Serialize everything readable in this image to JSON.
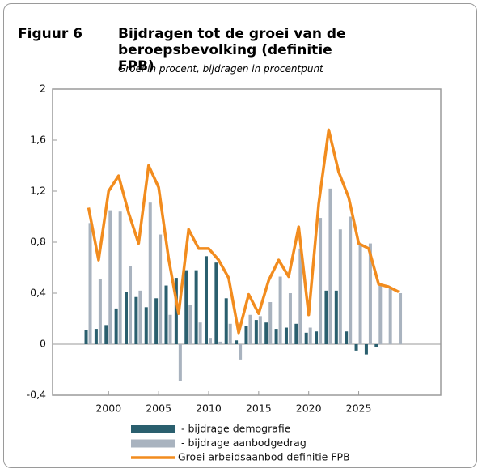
{
  "chart_data": {
    "type": "bar",
    "figure_label": "Figuur 6",
    "title": "Bijdragen tot de groei van de beroepsbevolking (definitie FPB)",
    "subtitle": "Groei in procent, bijdragen in procentpunt",
    "x": [
      1998,
      1999,
      2000,
      2001,
      2002,
      2003,
      2004,
      2005,
      2006,
      2007,
      2008,
      2009,
      2010,
      2011,
      2012,
      2013,
      2014,
      2015,
      2016,
      2017,
      2018,
      2019,
      2020,
      2021,
      2022,
      2023,
      2024,
      2025,
      2026,
      2027,
      2028,
      2029
    ],
    "xlim": [
      1994.4,
      2033.2
    ],
    "xticks": [
      2000,
      2005,
      2010,
      2015,
      2020,
      2025
    ],
    "ylim": [
      -0.4,
      2
    ],
    "yticks": [
      {
        "value": -0.4,
        "label": "-0,4"
      },
      0,
      {
        "value": 0.4,
        "label": "0,4"
      },
      {
        "value": 0.8,
        "label": "0,8"
      },
      {
        "value": 1.2,
        "label": "1,2"
      },
      {
        "value": 1.6,
        "label": "1,6"
      },
      2
    ],
    "series": [
      {
        "name": "- bijdrage demografie",
        "type": "bar",
        "color": "#2a5f6e",
        "values": [
          0.11,
          0.12,
          0.15,
          0.28,
          0.41,
          0.37,
          0.29,
          0.36,
          0.46,
          0.52,
          0.58,
          0.58,
          0.69,
          0.64,
          0.36,
          0.03,
          0.14,
          0.19,
          0.17,
          0.12,
          0.13,
          0.16,
          0.09,
          0.1,
          0.42,
          0.42,
          0.1,
          -0.05,
          -0.08,
          -0.02,
          0,
          0
        ]
      },
      {
        "name": "- bijdrage aanbodgedrag",
        "type": "bar",
        "color": "#a9b3bf",
        "values": [
          0.95,
          0.51,
          1.05,
          1.04,
          0.61,
          0.42,
          1.11,
          0.86,
          0.23,
          -0.29,
          0.31,
          0.17,
          0.05,
          0.02,
          0.16,
          -0.12,
          0.23,
          0.22,
          0.33,
          0.53,
          0.4,
          0.75,
          0.13,
          0.99,
          1.22,
          0.9,
          1.0,
          0.79,
          0.79,
          0.47,
          0.44,
          0.4
        ]
      },
      {
        "name": "Groei arbeidsaanbod definitie FPB",
        "type": "line",
        "color": "#f28c1e",
        "values": [
          1.07,
          0.66,
          1.2,
          1.32,
          1.03,
          0.79,
          1.4,
          1.23,
          0.67,
          0.24,
          0.9,
          0.75,
          0.75,
          0.66,
          0.52,
          0.09,
          0.39,
          0.24,
          0.5,
          0.66,
          0.53,
          0.92,
          0.23,
          1.1,
          1.68,
          1.35,
          1.15,
          0.79,
          0.75,
          0.47,
          0.45,
          0.41
        ]
      }
    ]
  }
}
